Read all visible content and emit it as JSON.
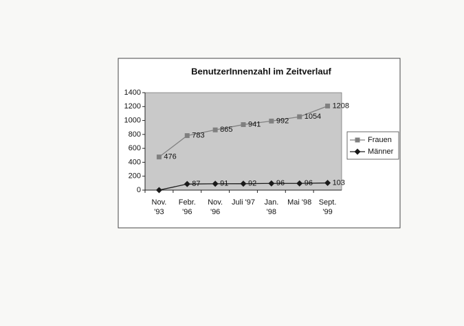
{
  "chart_data": {
    "type": "line",
    "title": "BenutzerInnenzahl im Zeitverlauf",
    "categories": [
      "Nov.\n'93",
      "Febr.\n'96",
      "Nov.\n'96",
      "Juli '97",
      "Jan.\n'98",
      "Mai '98",
      "Sept.\n'99"
    ],
    "series": [
      {
        "name": "Frauen",
        "color": "#808080",
        "marker": "square",
        "values": [
          476,
          783,
          865,
          941,
          992,
          1054,
          1208
        ]
      },
      {
        "name": "Männer",
        "color": "#1a1a1a",
        "marker": "diamond",
        "values": [
          0,
          87,
          91,
          92,
          96,
          96,
          103
        ],
        "value_labels": [
          null,
          "87",
          "91",
          "92",
          "96",
          "96",
          "103"
        ]
      }
    ],
    "ylim": [
      0,
      1400
    ],
    "yticks": [
      0,
      200,
      400,
      600,
      800,
      1000,
      1200,
      1400
    ],
    "grid": false,
    "legend": "right",
    "plot_background": "#c9c9c9"
  }
}
